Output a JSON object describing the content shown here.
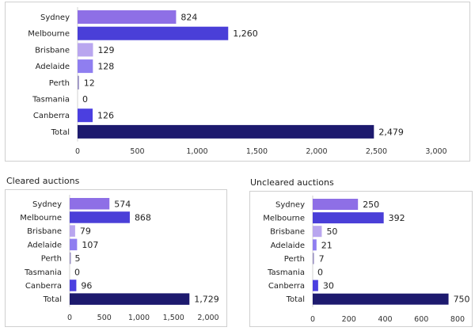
{
  "chart_data": [
    {
      "type": "bar",
      "orientation": "horizontal",
      "title": "",
      "categories": [
        "Sydney",
        "Melbourne",
        "Brisbane",
        "Adelaide",
        "Perth",
        "Tasmania",
        "Canberra",
        "Total"
      ],
      "values": [
        824,
        1260,
        129,
        128,
        12,
        0,
        126,
        2479
      ],
      "value_labels": [
        "824",
        "1,260",
        "129",
        "128",
        "12",
        "0",
        "126",
        "2,479"
      ],
      "xlim": [
        0,
        3000
      ],
      "ticks": [
        0,
        500,
        1000,
        1500,
        2000,
        2500,
        3000
      ],
      "tick_labels": [
        "0",
        "500",
        "1,000",
        "1,500",
        "2,000",
        "2,500",
        "3,000"
      ],
      "grid": false,
      "colors": [
        "#8e6fe6",
        "#4a3fd8",
        "#b9a6ef",
        "#8f7ef0",
        "#9a91c2",
        "#9a91c2",
        "#4b3fe0",
        "#1d1a6e"
      ]
    },
    {
      "type": "bar",
      "orientation": "horizontal",
      "title": "Cleared auctions",
      "categories": [
        "Sydney",
        "Melbourne",
        "Brisbane",
        "Adelaide",
        "Perth",
        "Tasmania",
        "Canberra",
        "Total"
      ],
      "values": [
        574,
        868,
        79,
        107,
        5,
        0,
        96,
        1729
      ],
      "value_labels": [
        "574",
        "868",
        "79",
        "107",
        "5",
        "0",
        "96",
        "1,729"
      ],
      "xlim": [
        0,
        2000
      ],
      "ticks": [
        0,
        500,
        1000,
        1500,
        2000
      ],
      "tick_labels": [
        "0",
        "500",
        "1,000",
        "1,500",
        "2,000"
      ],
      "grid": false,
      "colors": [
        "#8e6fe6",
        "#4a3fd8",
        "#b9a6ef",
        "#8f7ef0",
        "#9a91c2",
        "#9a91c2",
        "#4b3fe0",
        "#1d1a6e"
      ]
    },
    {
      "type": "bar",
      "orientation": "horizontal",
      "title": "Uncleared auctions",
      "categories": [
        "Sydney",
        "Melbourne",
        "Brisbane",
        "Adelaide",
        "Perth",
        "Tasmania",
        "Canberra",
        "Total"
      ],
      "values": [
        250,
        392,
        50,
        21,
        7,
        0,
        30,
        750
      ],
      "value_labels": [
        "250",
        "392",
        "50",
        "21",
        "7",
        "0",
        "30",
        "750"
      ],
      "xlim": [
        0,
        800
      ],
      "ticks": [
        0,
        200,
        400,
        600,
        800
      ],
      "tick_labels": [
        "0",
        "200",
        "400",
        "600",
        "800"
      ],
      "grid": false,
      "colors": [
        "#8e6fe6",
        "#4a3fd8",
        "#b9a6ef",
        "#8f7ef0",
        "#9a91c2",
        "#9a91c2",
        "#4b3fe0",
        "#1d1a6e"
      ]
    }
  ]
}
